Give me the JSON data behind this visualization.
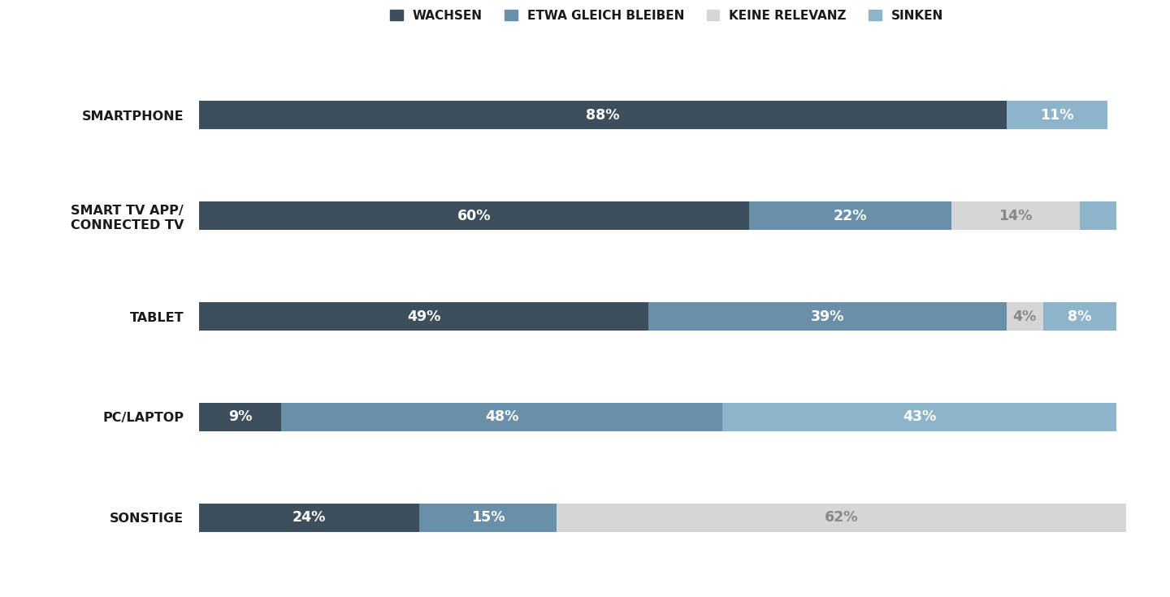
{
  "categories": [
    "SMARTPHONE",
    "SMART TV APP/\nCONNECTED TV",
    "TABLET",
    "PC/LAPTOP",
    "SONSTIGE"
  ],
  "series": {
    "WACHSEN": [
      88,
      60,
      49,
      9,
      24
    ],
    "ETWA GLEICH BLEIBEN": [
      0,
      22,
      39,
      48,
      15
    ],
    "KEINE RELEVANZ": [
      0,
      14,
      4,
      0,
      62
    ],
    "SINKEN": [
      11,
      4,
      8,
      43,
      0
    ]
  },
  "labels": {
    "WACHSEN": [
      "88%",
      "60%",
      "49%",
      "9%",
      "24%"
    ],
    "ETWA GLEICH BLEIBEN": [
      "",
      "22%",
      "39%",
      "48%",
      "15%"
    ],
    "KEINE RELEVANZ": [
      "",
      "14%",
      "4%",
      "",
      "62%"
    ],
    "SINKEN": [
      "11%",
      "",
      "8%",
      "43%",
      ""
    ]
  },
  "label_colors": {
    "WACHSEN": [
      "white",
      "white",
      "white",
      "white",
      "white"
    ],
    "ETWA GLEICH BLEIBEN": [
      "white",
      "white",
      "white",
      "white",
      "white"
    ],
    "KEINE RELEVANZ": [
      "white",
      "#888888",
      "#888888",
      "white",
      "#888888"
    ],
    "SINKEN": [
      "white",
      "white",
      "white",
      "white",
      "white"
    ]
  },
  "colors": {
    "WACHSEN": "#3d4f5c",
    "ETWA GLEICH BLEIBEN": "#6a8fa8",
    "KEINE RELEVANZ": "#d6d6d6",
    "SINKEN": "#8eb4ca"
  },
  "legend_labels": [
    "WACHSEN",
    "ETWA GLEICH BLEIBEN",
    "KEINE RELEVANZ",
    "SINKEN"
  ],
  "bar_height": 0.28,
  "background_color": "#ffffff",
  "text_color": "#1a1a1a",
  "label_fontsize": 12.5,
  "ylabel_fontsize": 11.5,
  "legend_fontsize": 11
}
